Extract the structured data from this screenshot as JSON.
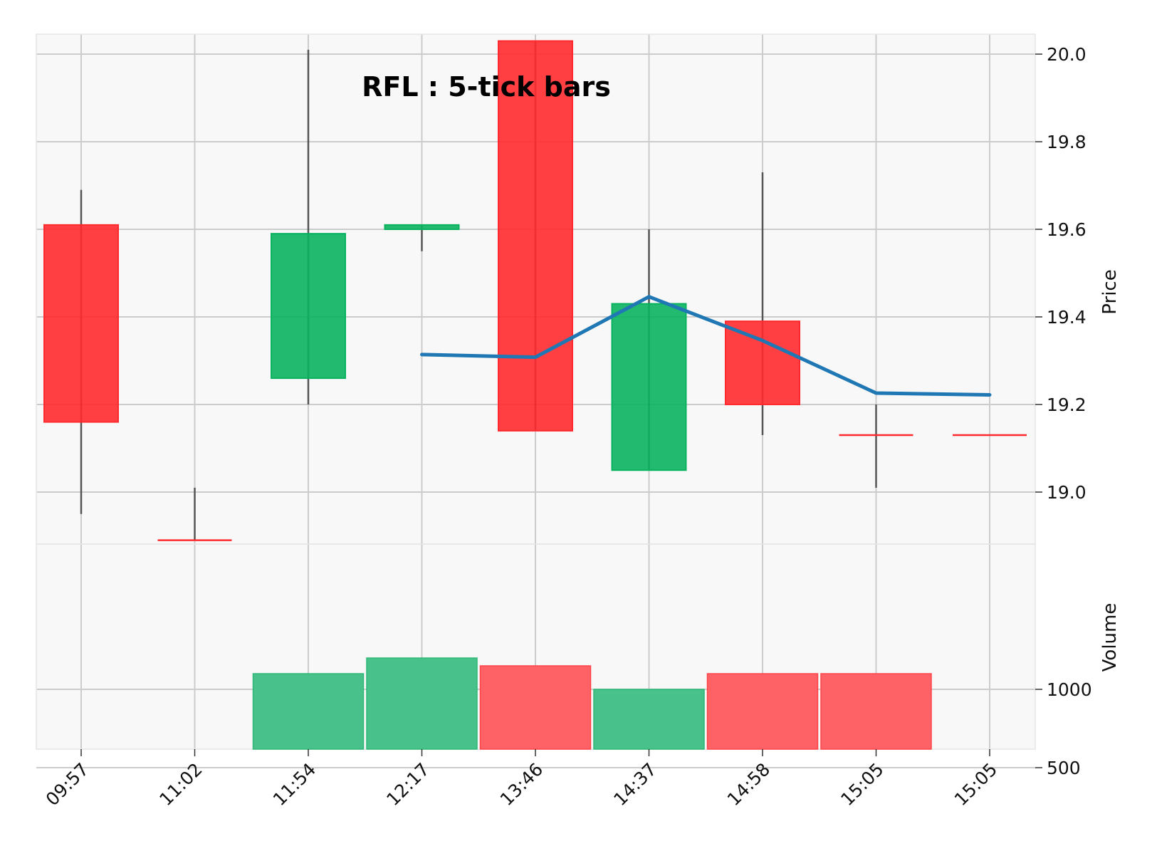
{
  "chart_data": {
    "type": "candlestick",
    "title": "RFL : 5-tick bars",
    "x": [
      "09:57",
      "11:02",
      "11:54",
      "12:17",
      "13:46",
      "14:37",
      "14:58",
      "15:05",
      "15:05"
    ],
    "ohlc": [
      {
        "open": 19.61,
        "high": 19.69,
        "low": 18.95,
        "close": 19.16
      },
      {
        "open": 18.89,
        "high": 19.01,
        "low": 18.89,
        "close": 18.89
      },
      {
        "open": 19.26,
        "high": 20.01,
        "low": 19.2,
        "close": 19.59
      },
      {
        "open": 19.6,
        "high": 19.61,
        "low": 19.55,
        "close": 19.61
      },
      {
        "open": 20.03,
        "high": 20.03,
        "low": 19.14,
        "close": 19.14
      },
      {
        "open": 19.05,
        "high": 19.6,
        "low": 19.05,
        "close": 19.43
      },
      {
        "open": 19.39,
        "high": 19.73,
        "low": 19.13,
        "close": 19.2
      },
      {
        "open": 19.13,
        "high": 19.2,
        "low": 19.01,
        "close": 19.13
      },
      {
        "open": 19.13,
        "high": 19.13,
        "low": 19.13,
        "close": 19.13
      }
    ],
    "volume": [
      500,
      500,
      1100,
      1200,
      1150,
      1000,
      1100,
      1100,
      400
    ],
    "moving_average": [
      null,
      null,
      null,
      19.314,
      19.308,
      19.446,
      19.346,
      19.226,
      19.222
    ],
    "price_axis": {
      "label": "Price",
      "ticks": [
        "19.0",
        "19.2",
        "19.4",
        "19.6",
        "19.8",
        "20.0"
      ],
      "range": [
        18.88,
        20.08
      ]
    },
    "volume_axis": {
      "label": "Volume",
      "ticks": [
        "500",
        "1000"
      ],
      "range": [
        130,
        1400
      ]
    },
    "grid": true,
    "colors": {
      "up": "#09b25f",
      "down": "#ff2a2e",
      "volume_up": "#48c28a",
      "volume_down": "#ff6266",
      "moving_average": "#1f77b4",
      "wick": "#555555",
      "background": "#f8f8f8",
      "grid": "#cccccc"
    }
  }
}
